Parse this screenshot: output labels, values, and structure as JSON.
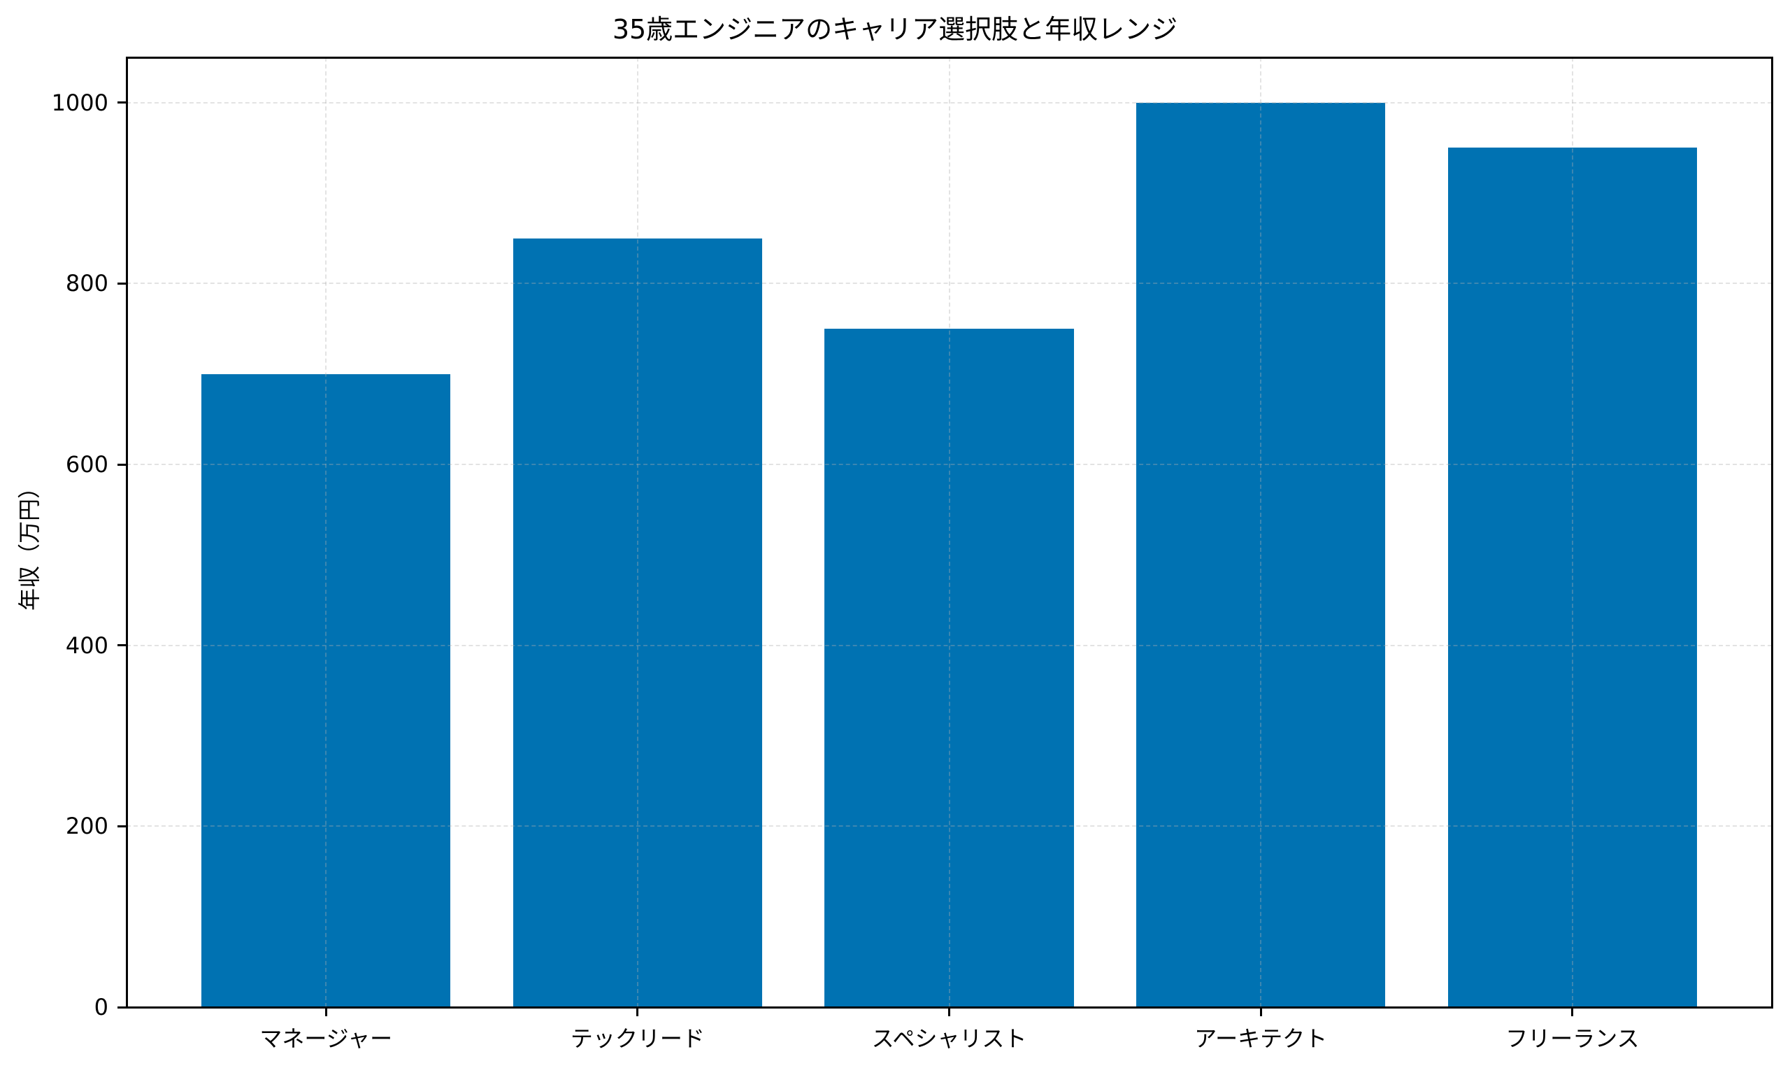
{
  "chart_data": {
    "type": "bar",
    "title": "35歳エンジニアのキャリア選択肢と年収レンジ",
    "xlabel": "",
    "ylabel": "年収（万円）",
    "categories": [
      "マネージャー",
      "テックリード",
      "スペシャリスト",
      "アーキテクト",
      "フリーランス"
    ],
    "values": [
      700,
      850,
      750,
      1000,
      950
    ],
    "ylim": [
      0,
      1050
    ],
    "xlim": [
      -0.64,
      4.64
    ],
    "yticks": [
      0,
      200,
      400,
      600,
      800,
      1000
    ],
    "ytick_labels": [
      "0",
      "200",
      "400",
      "600",
      "800",
      "1000"
    ],
    "grid": true,
    "grid_style": "dashed",
    "legend": null,
    "bar_color": "#0072B2",
    "bar_width": 0.8
  }
}
